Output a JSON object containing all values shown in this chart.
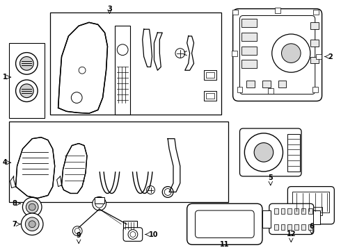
{
  "background_color": "#ffffff",
  "line_color": "#000000",
  "gray_light": "#d0d0d0",
  "gray_mid": "#b0b0b0",
  "gray_fill": "#e8e8e8"
}
